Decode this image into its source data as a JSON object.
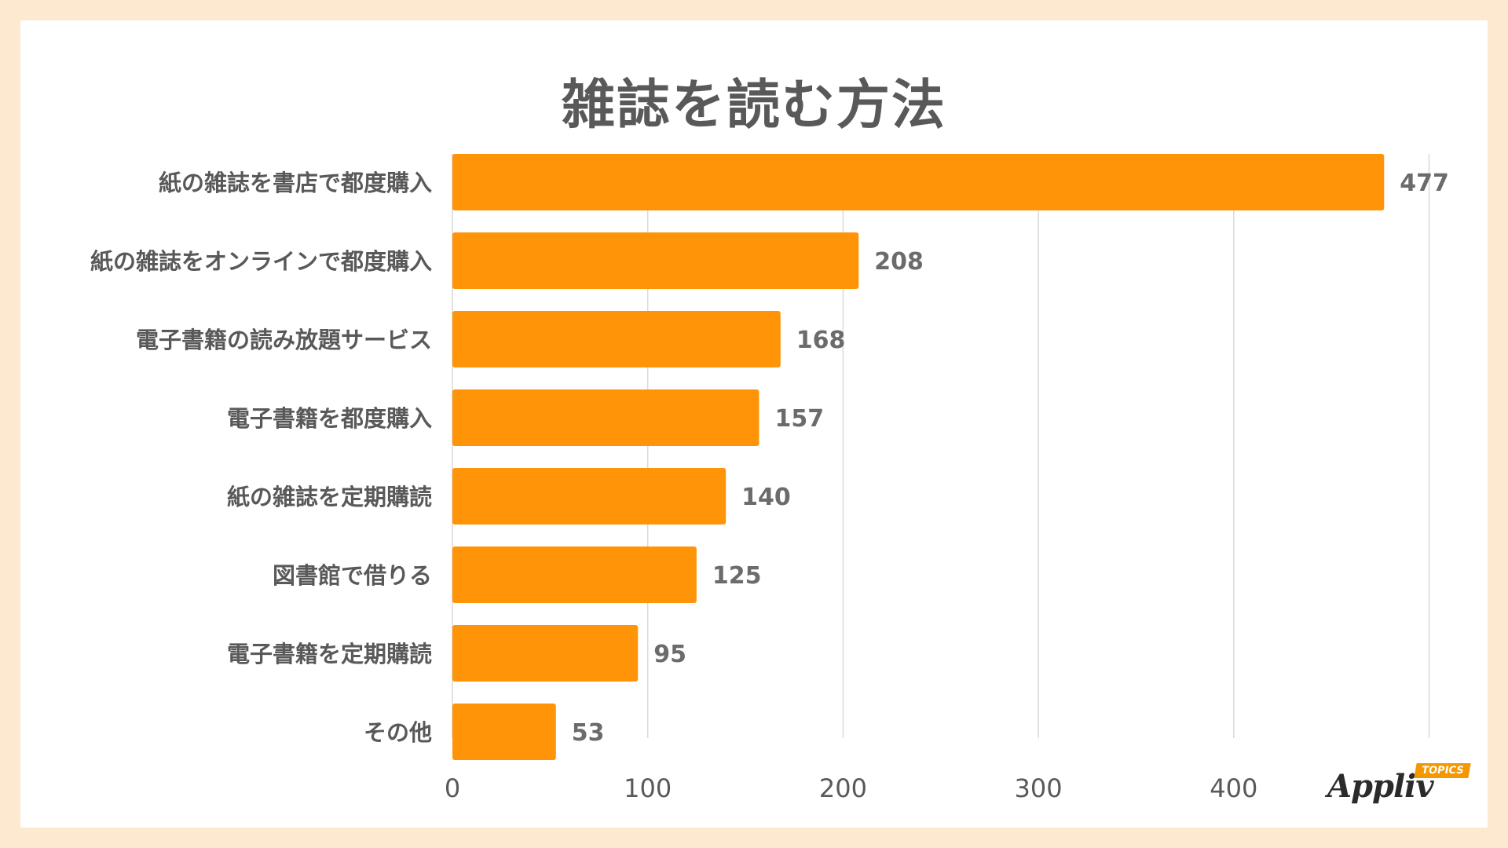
{
  "chart_data": {
    "type": "bar",
    "orientation": "horizontal",
    "title": "雑誌を読む方法",
    "categories": [
      "紙の雑誌を書店で都度購入",
      "紙の雑誌をオンラインで都度購入",
      "電子書籍の読み放題サービス",
      "電子書籍を都度購入",
      "紙の雑誌を定期購読",
      "図書館で借りる",
      "電子書籍を定期購読",
      "その他"
    ],
    "values": [
      477,
      208,
      168,
      157,
      140,
      125,
      95,
      53
    ],
    "xlim": [
      0,
      500
    ],
    "xticks": [
      0,
      100,
      200,
      300,
      400
    ],
    "grid": "vertical",
    "bar_color": "#ff9408",
    "label_color": "#595959",
    "grid_color": "#d9d9d9"
  },
  "logo": {
    "text": "Appliv",
    "badge": "TOPICS"
  }
}
